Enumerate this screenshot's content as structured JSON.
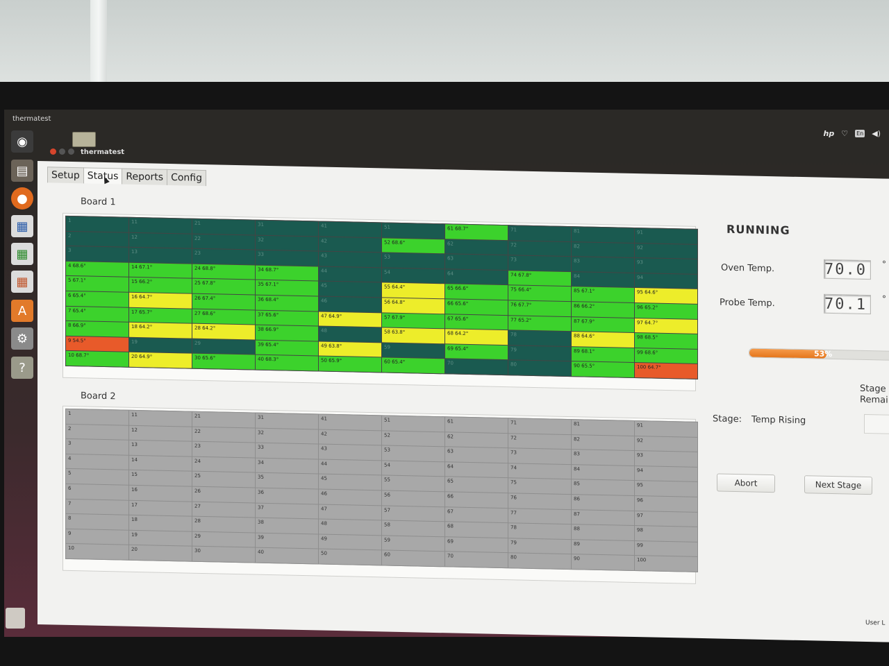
{
  "panel": {
    "title": "thermatest",
    "tray_en": "En",
    "tray_logo": "hp"
  },
  "window": {
    "title": "thermatest"
  },
  "tabs": [
    {
      "label": "Setup"
    },
    {
      "label": "Status"
    },
    {
      "label": "Reports"
    },
    {
      "label": "Config"
    }
  ],
  "active_tab": 1,
  "board1": {
    "title": "Board 1"
  },
  "board2": {
    "title": "Board 2"
  },
  "status": {
    "state": "RUNNING",
    "oven_label": "Oven Temp.",
    "oven_value": "70.0",
    "probe_label": "Probe Temp.",
    "probe_value": "70.1",
    "degree_symbol": "°",
    "progress_percent": 53,
    "progress_text": "53%",
    "stage_label": "Stage:",
    "stage_value": "Temp Rising",
    "stage_remaining_label_1": "Stage",
    "stage_remaining_label_2": "Remai",
    "abort_label": "Abort",
    "next_stage_label": "Next Stage",
    "footer": "User L"
  },
  "colors": {
    "idle": "#1a5a50",
    "ok": "#3cd22c",
    "warn": "#eded2a",
    "alert": "#e85a2a",
    "inactive": "#a8a8a8"
  },
  "board1_cells": [
    {
      "t": "1",
      "s": "idle"
    },
    {
      "t": "2",
      "s": "idle"
    },
    {
      "t": "3",
      "s": "idle"
    },
    {
      "t": "4 68.6°",
      "s": "ok"
    },
    {
      "t": "5 67.1°",
      "s": "ok"
    },
    {
      "t": "6 65.4°",
      "s": "ok"
    },
    {
      "t": "7 65.4°",
      "s": "ok"
    },
    {
      "t": "8 66.9°",
      "s": "ok"
    },
    {
      "t": "9 54.5°",
      "s": "alert"
    },
    {
      "t": "10 68.7°",
      "s": "ok"
    },
    {
      "t": "11",
      "s": "idle"
    },
    {
      "t": "12",
      "s": "idle"
    },
    {
      "t": "13",
      "s": "idle"
    },
    {
      "t": "14 67.1°",
      "s": "ok"
    },
    {
      "t": "15 66.2°",
      "s": "ok"
    },
    {
      "t": "16 64.7°",
      "s": "warn"
    },
    {
      "t": "17 65.7°",
      "s": "ok"
    },
    {
      "t": "18 64.2°",
      "s": "warn"
    },
    {
      "t": "19",
      "s": "idle"
    },
    {
      "t": "20 64.9°",
      "s": "warn"
    },
    {
      "t": "21",
      "s": "idle"
    },
    {
      "t": "22",
      "s": "idle"
    },
    {
      "t": "23",
      "s": "idle"
    },
    {
      "t": "24 68.8°",
      "s": "ok"
    },
    {
      "t": "25 67.8°",
      "s": "ok"
    },
    {
      "t": "26 67.4°",
      "s": "ok"
    },
    {
      "t": "27 68.6°",
      "s": "ok"
    },
    {
      "t": "28 64.2°",
      "s": "warn"
    },
    {
      "t": "29",
      "s": "idle"
    },
    {
      "t": "30 65.6°",
      "s": "ok"
    },
    {
      "t": "31",
      "s": "idle"
    },
    {
      "t": "32",
      "s": "idle"
    },
    {
      "t": "33",
      "s": "idle"
    },
    {
      "t": "34 68.7°",
      "s": "ok"
    },
    {
      "t": "35 67.1°",
      "s": "ok"
    },
    {
      "t": "36 68.4°",
      "s": "ok"
    },
    {
      "t": "37 65.6°",
      "s": "ok"
    },
    {
      "t": "38 66.9°",
      "s": "ok"
    },
    {
      "t": "39 65.4°",
      "s": "ok"
    },
    {
      "t": "40 68.3°",
      "s": "ok"
    },
    {
      "t": "41",
      "s": "idle"
    },
    {
      "t": "42",
      "s": "idle"
    },
    {
      "t": "43",
      "s": "idle"
    },
    {
      "t": "44",
      "s": "idle"
    },
    {
      "t": "45",
      "s": "idle"
    },
    {
      "t": "46",
      "s": "idle"
    },
    {
      "t": "47 64.9°",
      "s": "warn"
    },
    {
      "t": "48",
      "s": "idle"
    },
    {
      "t": "49 63.8°",
      "s": "warn"
    },
    {
      "t": "50 65.9°",
      "s": "ok"
    },
    {
      "t": "51",
      "s": "idle"
    },
    {
      "t": "52 68.6°",
      "s": "ok"
    },
    {
      "t": "53",
      "s": "idle"
    },
    {
      "t": "54",
      "s": "idle"
    },
    {
      "t": "55 64.4°",
      "s": "warn"
    },
    {
      "t": "56 64.8°",
      "s": "warn"
    },
    {
      "t": "57 67.9°",
      "s": "ok"
    },
    {
      "t": "58 63.8°",
      "s": "warn"
    },
    {
      "t": "59",
      "s": "idle"
    },
    {
      "t": "60 65.4°",
      "s": "ok"
    },
    {
      "t": "61 68.7°",
      "s": "ok"
    },
    {
      "t": "62",
      "s": "idle"
    },
    {
      "t": "63",
      "s": "idle"
    },
    {
      "t": "64",
      "s": "idle"
    },
    {
      "t": "65 66.6°",
      "s": "ok"
    },
    {
      "t": "66 65.6°",
      "s": "ok"
    },
    {
      "t": "67 65.6°",
      "s": "ok"
    },
    {
      "t": "68 64.2°",
      "s": "warn"
    },
    {
      "t": "69 65.4°",
      "s": "ok"
    },
    {
      "t": "70",
      "s": "idle"
    },
    {
      "t": "71",
      "s": "idle"
    },
    {
      "t": "72",
      "s": "idle"
    },
    {
      "t": "73",
      "s": "idle"
    },
    {
      "t": "74 67.8°",
      "s": "ok"
    },
    {
      "t": "75 66.4°",
      "s": "ok"
    },
    {
      "t": "76 67.7°",
      "s": "ok"
    },
    {
      "t": "77 65.2°",
      "s": "ok"
    },
    {
      "t": "78",
      "s": "idle"
    },
    {
      "t": "79",
      "s": "idle"
    },
    {
      "t": "80",
      "s": "idle"
    },
    {
      "t": "81",
      "s": "idle"
    },
    {
      "t": "82",
      "s": "idle"
    },
    {
      "t": "83",
      "s": "idle"
    },
    {
      "t": "84",
      "s": "idle"
    },
    {
      "t": "85 67.1°",
      "s": "ok"
    },
    {
      "t": "86 66.2°",
      "s": "ok"
    },
    {
      "t": "87 67.9°",
      "s": "ok"
    },
    {
      "t": "88 64.6°",
      "s": "warn"
    },
    {
      "t": "89 68.1°",
      "s": "ok"
    },
    {
      "t": "90 65.5°",
      "s": "ok"
    },
    {
      "t": "91",
      "s": "idle"
    },
    {
      "t": "92",
      "s": "idle"
    },
    {
      "t": "93",
      "s": "idle"
    },
    {
      "t": "94",
      "s": "idle"
    },
    {
      "t": "95 64.6°",
      "s": "warn"
    },
    {
      "t": "96 65.2°",
      "s": "ok"
    },
    {
      "t": "97 64.7°",
      "s": "warn"
    },
    {
      "t": "98 68.5°",
      "s": "ok"
    },
    {
      "t": "99 68.6°",
      "s": "ok"
    },
    {
      "t": "100 64.7°",
      "s": "alert"
    }
  ],
  "board2_cells": [
    "1",
    "2",
    "3",
    "4",
    "5",
    "6",
    "7",
    "8",
    "9",
    "10",
    "11",
    "12",
    "13",
    "14",
    "15",
    "16",
    "17",
    "18",
    "19",
    "20",
    "21",
    "22",
    "23",
    "24",
    "25",
    "26",
    "27",
    "28",
    "29",
    "30",
    "31",
    "32",
    "33",
    "34",
    "35",
    "36",
    "37",
    "38",
    "39",
    "40",
    "41",
    "42",
    "43",
    "44",
    "45",
    "46",
    "47",
    "48",
    "49",
    "50",
    "51",
    "52",
    "53",
    "54",
    "55",
    "56",
    "57",
    "58",
    "59",
    "60",
    "61",
    "62",
    "63",
    "64",
    "65",
    "66",
    "67",
    "68",
    "69",
    "70",
    "71",
    "72",
    "73",
    "74",
    "75",
    "76",
    "77",
    "78",
    "79",
    "80",
    "81",
    "82",
    "83",
    "84",
    "85",
    "86",
    "87",
    "88",
    "89",
    "90",
    "91",
    "92",
    "93",
    "94",
    "95",
    "96",
    "97",
    "98",
    "99",
    "100"
  ]
}
